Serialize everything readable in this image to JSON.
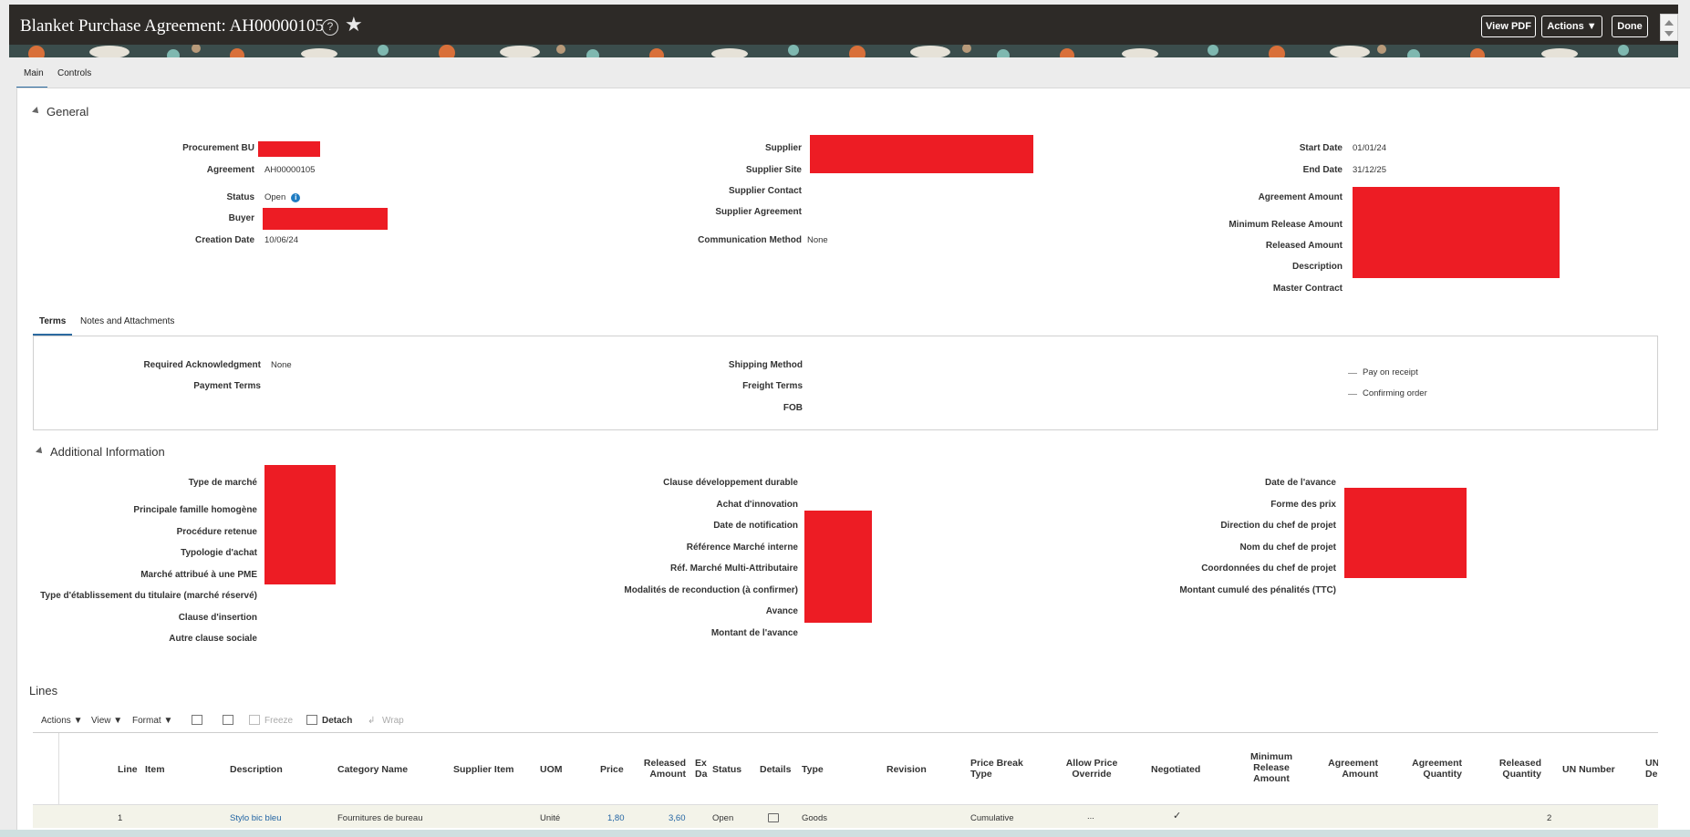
{
  "header": {
    "title": "Blanket Purchase Agreement: AH00000105",
    "help_icon": "?",
    "star_icon": "★",
    "view_pdf": "View PDF",
    "actions": "Actions ▼",
    "done": "Done"
  },
  "tabs": {
    "main": "Main",
    "controls": "Controls"
  },
  "general": {
    "title": "General",
    "col1": {
      "procurement_bu": "Procurement BU",
      "agreement": "Agreement",
      "agreement_value": "AH00000105",
      "status": "Status",
      "status_value": "Open",
      "buyer": "Buyer",
      "creation_date": "Creation Date",
      "creation_date_value": "10/06/24"
    },
    "col2": {
      "supplier": "Supplier",
      "supplier_site": "Supplier Site",
      "supplier_contact": "Supplier Contact",
      "supplier_agreement": "Supplier Agreement",
      "communication_method": "Communication Method",
      "communication_method_value": "None"
    },
    "col3": {
      "start_date": "Start Date",
      "start_date_value": "01/01/24",
      "end_date": "End Date",
      "end_date_value": "31/12/25",
      "agreement_amount": "Agreement Amount",
      "minimum_release_amount": "Minimum Release Amount",
      "released_amount": "Released Amount",
      "description": "Description",
      "master_contract": "Master Contract"
    }
  },
  "terms_tabs": {
    "terms": "Terms",
    "notes": "Notes and Attachments"
  },
  "terms": {
    "required_ack": "Required Acknowledgment",
    "required_ack_value": "None",
    "payment_terms": "Payment Terms",
    "shipping_method": "Shipping Method",
    "freight_terms": "Freight Terms",
    "fob": "FOB",
    "pay_on_receipt": "Pay on receipt",
    "confirming_order": "Confirming order"
  },
  "additional": {
    "title": "Additional Information",
    "col1": [
      "Type de marché",
      "Principale famille homogène",
      "Procédure retenue",
      "Typologie d'achat",
      "Marché attribué à une PME",
      "Type d'établissement du titulaire (marché réservé)",
      "Clause d'insertion",
      "Autre clause sociale"
    ],
    "col2": [
      "Clause développement durable",
      "Achat d'innovation",
      "Date de notification",
      "Référence Marché interne",
      "Réf. Marché Multi-Attributaire",
      "Modalités de reconduction (à confirmer)",
      "Avance",
      "Montant de l'avance"
    ],
    "col3": [
      "Date de l'avance",
      "Forme des prix",
      "Direction du chef de projet",
      "Nom du chef de projet",
      "Coordonnées du chef de projet",
      "Montant cumulé des pénalités (TTC)"
    ]
  },
  "lines": {
    "title": "Lines",
    "toolbar": {
      "actions": "Actions ▼",
      "view": "View ▼",
      "format": "Format ▼",
      "freeze": "Freeze",
      "detach": "Detach",
      "wrap": "Wrap"
    },
    "headers": {
      "line": "Line",
      "item": "Item",
      "description": "Description",
      "category": "Category Name",
      "supplier_item": "Supplier Item",
      "uom": "UOM",
      "price": "Price",
      "released_amount": "Released Amount",
      "ex_da": "Ex Da",
      "status": "Status",
      "details": "Details",
      "type": "Type",
      "revision": "Revision",
      "price_break": "Price Break Type",
      "allow_override": "Allow Price Override",
      "negotiated": "Negotiated",
      "min_release": "Minimum Release Amount",
      "agreement_amount": "Agreement Amount",
      "agreement_quantity": "Agreement Quantity",
      "released_quantity": "Released Quantity",
      "un_number": "UN Number",
      "un_de": "UN De"
    },
    "row": {
      "line": "1",
      "description": "Stylo bic bleu",
      "category": "Fournitures de bureau",
      "uom": "Unité",
      "price": "1,80",
      "released_amount": "3,60",
      "status": "Open",
      "type": "Goods",
      "price_break": "Cumulative",
      "allow_override": "...",
      "negotiated": "✓",
      "released_quantity": "2"
    }
  },
  "colors": {
    "header_bg": "#2d2a27",
    "redaction": "#ed1c24",
    "link": "#2264a3",
    "accent": "#2b6aa0"
  }
}
